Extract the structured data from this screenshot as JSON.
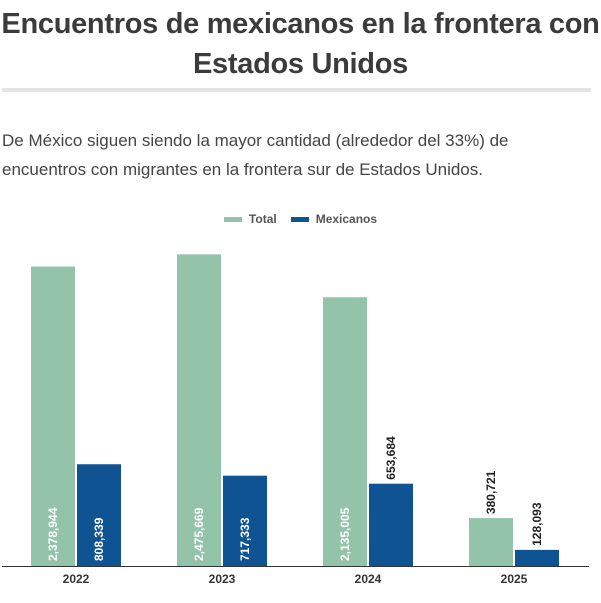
{
  "title": "Encuentros de mexicanos en la frontera con Estados Unidos",
  "subtitle": "De México siguen siendo la mayor cantidad (alrededor del 33%) de encuentros con migrantes en la frontera sur de Estados Unidos.",
  "colors": {
    "total": "#93c4a9",
    "mexicanos": "#0f5392"
  },
  "chart_data": {
    "type": "bar",
    "categories": [
      "2022",
      "2023",
      "2024",
      "2025"
    ],
    "series": [
      {
        "name": "Total",
        "values": [
          2378944,
          2475669,
          2135005,
          380721
        ],
        "labels": [
          "2,378,944",
          "2,475,669",
          "2,135,005",
          "380,721"
        ]
      },
      {
        "name": "Mexicanos",
        "values": [
          808339,
          717333,
          653684,
          128093
        ],
        "labels": [
          "808,339",
          "717,333",
          "653,684",
          "128,093"
        ]
      }
    ],
    "ylim": [
      0,
      2550000
    ],
    "grid": false,
    "legend": "top-center"
  }
}
